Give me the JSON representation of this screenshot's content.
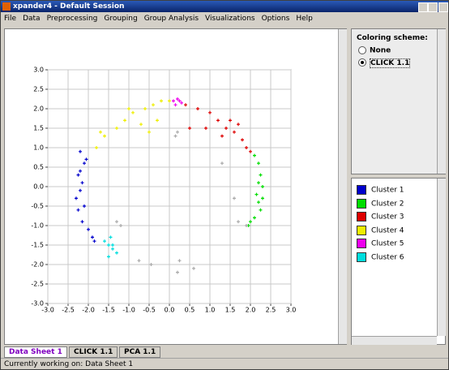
{
  "window": {
    "title": "xpander4 - Default Session"
  },
  "menu": [
    "File",
    "Data",
    "Preprocessing",
    "Grouping",
    "Group Analysis",
    "Visualizations",
    "Options",
    "Help"
  ],
  "chart_data": {
    "type": "scatter",
    "xlim": [
      -3,
      3
    ],
    "ylim": [
      -3,
      3
    ],
    "grid": true,
    "xticks": [
      {
        "value": -3,
        "label": "-3.0"
      },
      {
        "value": -2.5,
        "label": "-2.5"
      },
      {
        "value": -2,
        "label": "-2.0"
      },
      {
        "value": -1.5,
        "label": "-1.5"
      },
      {
        "value": -1,
        "label": "-1.0"
      },
      {
        "value": -0.5,
        "label": "-0.5"
      },
      {
        "value": 0,
        "label": "0.0"
      },
      {
        "value": 0.5,
        "label": "0.5"
      },
      {
        "value": 1,
        "label": "1.0"
      },
      {
        "value": 1.5,
        "label": "1.5"
      },
      {
        "value": 2,
        "label": "2.0"
      },
      {
        "value": 2.5,
        "label": "2.5"
      },
      {
        "value": 3,
        "label": "3.0"
      }
    ],
    "yticks": [
      {
        "value": 3,
        "label": "3.0"
      },
      {
        "value": 2.5,
        "label": "2.5"
      },
      {
        "value": 2,
        "label": "2.0"
      },
      {
        "value": 1.5,
        "label": "1.5"
      },
      {
        "value": 1,
        "label": "1.0"
      },
      {
        "value": 0.5,
        "label": "0.5"
      },
      {
        "value": 0,
        "label": "0.0"
      },
      {
        "value": -0.5,
        "label": "-0.5"
      },
      {
        "value": -1,
        "label": "-1.0"
      },
      {
        "value": -1.5,
        "label": "-1.5"
      },
      {
        "value": -2,
        "label": "-2.0"
      },
      {
        "value": -2.5,
        "label": "-2.5"
      },
      {
        "value": -3,
        "label": "-3.0"
      }
    ],
    "series": [
      {
        "name": "Cluster 1",
        "color": "#0000cc",
        "x": [
          -2.2,
          -2.1,
          -2.25,
          -2.15,
          -2.2,
          -2.3,
          -2.1,
          -2.2,
          -2.05,
          -2.25,
          -2.15,
          -2.0,
          -1.9,
          -1.85
        ],
        "values": [
          0.9,
          0.6,
          0.3,
          0.1,
          -0.1,
          -0.3,
          -0.5,
          0.4,
          0.7,
          -0.6,
          -0.9,
          -1.1,
          -1.3,
          -1.4
        ]
      },
      {
        "name": "Cluster 2",
        "color": "#00dd00",
        "x": [
          2.1,
          2.2,
          2.25,
          2.3,
          2.15,
          2.2,
          2.25,
          2.1,
          2.0,
          1.95,
          2.2,
          2.3
        ],
        "values": [
          0.8,
          0.6,
          0.3,
          0.0,
          -0.2,
          -0.4,
          -0.6,
          -0.8,
          -0.9,
          -1.0,
          0.1,
          -0.3
        ]
      },
      {
        "name": "Cluster 3",
        "color": "#dd0000",
        "x": [
          0.4,
          0.7,
          1.0,
          1.2,
          1.4,
          1.6,
          1.8,
          1.9,
          2.0,
          1.5,
          1.3,
          0.9,
          1.7,
          0.5
        ],
        "values": [
          2.1,
          2.0,
          1.9,
          1.7,
          1.5,
          1.4,
          1.2,
          1.0,
          0.9,
          1.7,
          1.3,
          1.5,
          1.6,
          1.5
        ]
      },
      {
        "name": "Cluster 4",
        "color": "#eeee00",
        "x": [
          -1.8,
          -1.6,
          -1.3,
          -1.1,
          -0.9,
          -0.6,
          -0.4,
          -0.2,
          0.0,
          -0.7,
          -0.5,
          -0.3,
          -1.0,
          -1.7
        ],
        "values": [
          1.0,
          1.3,
          1.5,
          1.7,
          1.9,
          2.0,
          2.1,
          2.2,
          2.2,
          1.6,
          1.4,
          1.7,
          2.0,
          1.4
        ]
      },
      {
        "name": "Cluster 5",
        "color": "#ee00ee",
        "x": [
          0.1,
          0.2,
          0.3,
          0.15,
          0.25
        ],
        "values": [
          2.2,
          2.25,
          2.15,
          2.1,
          2.2
        ]
      },
      {
        "name": "Cluster 6",
        "color": "#00dddd",
        "x": [
          -1.6,
          -1.5,
          -1.4,
          -1.3,
          -1.5,
          -1.4,
          -1.45
        ],
        "values": [
          -1.4,
          -1.5,
          -1.6,
          -1.7,
          -1.8,
          -1.5,
          -1.3
        ]
      },
      {
        "color": "#aaaaaa",
        "x": [
          -1.3,
          -1.2,
          -0.75,
          -0.45,
          0.2,
          0.25,
          0.6,
          0.2,
          0.15,
          1.3,
          1.6,
          1.7,
          1.9
        ],
        "values": [
          -0.9,
          -1.0,
          -1.9,
          -2.0,
          -2.2,
          -1.9,
          -2.1,
          1.4,
          1.3,
          0.6,
          -0.3,
          -0.9,
          -1.0
        ]
      }
    ]
  },
  "coloring": {
    "title": "Coloring scheme:",
    "options": [
      "None",
      "CLICK 1.1"
    ],
    "selected": 1
  },
  "tabs": {
    "items": [
      "Data Sheet 1",
      "CLICK 1.1",
      "PCA 1.1"
    ],
    "active": 0
  },
  "status": "Currently working on: Data Sheet 1"
}
